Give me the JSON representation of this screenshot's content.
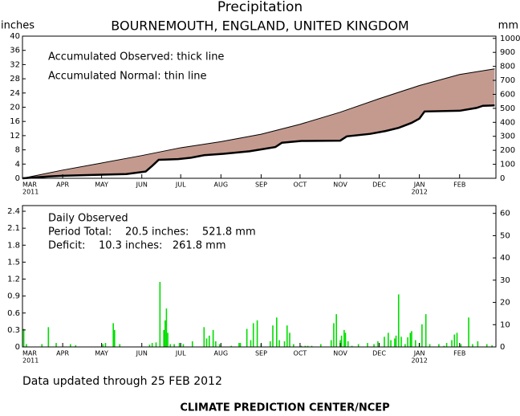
{
  "chart_data": [
    {
      "type": "line",
      "title": "Precipitation",
      "subtitle": "BOURNEMOUTH, ENGLAND, UNITED KINGDOM",
      "left_unit": "inches",
      "right_unit": "mm",
      "annotations": [
        "Accumulated Observed: thick line",
        "Accumulated Normal: thin line"
      ],
      "fill_color": "#c49a8f",
      "xlim": [
        0,
        365
      ],
      "xticks": [
        {
          "value": 0,
          "label": "MAR"
        },
        {
          "value": 31,
          "label": "APR"
        },
        {
          "value": 61,
          "label": "MAY"
        },
        {
          "value": 92,
          "label": "JUN"
        },
        {
          "value": 122,
          "label": "JUL"
        },
        {
          "value": 153,
          "label": "AUG"
        },
        {
          "value": 184,
          "label": "SEP"
        },
        {
          "value": 214,
          "label": "OCT"
        },
        {
          "value": 245,
          "label": "NOV"
        },
        {
          "value": 275,
          "label": "DEC"
        },
        {
          "value": 306,
          "label": "JAN"
        },
        {
          "value": 337,
          "label": "FEB"
        }
      ],
      "year_labels": [
        {
          "value": 0,
          "label": "2011"
        },
        {
          "value": 306,
          "label": "2012"
        }
      ],
      "ylim": [
        0,
        40
      ],
      "yticks": [
        0,
        4,
        8,
        12,
        16,
        20,
        24,
        28,
        32,
        36,
        40
      ],
      "y2lim": [
        0,
        1016
      ],
      "y2ticks": [
        0,
        100,
        200,
        300,
        400,
        500,
        600,
        700,
        800,
        900,
        1000
      ],
      "series": [
        {
          "color": "#000000",
          "linewidth": 1,
          "x": [
            0,
            31,
            61,
            92,
            122,
            153,
            184,
            214,
            245,
            275,
            306,
            337,
            364
          ],
          "values": [
            0,
            2.3,
            4.3,
            6.4,
            8.6,
            10.3,
            12.4,
            15.2,
            18.6,
            22.4,
            26.1,
            29.2,
            30.8
          ]
        },
        {
          "color": "#000000",
          "linewidth": 2.5,
          "x": [
            0,
            20,
            31,
            50,
            80,
            95,
            100,
            105,
            120,
            130,
            140,
            155,
            175,
            185,
            195,
            200,
            215,
            245,
            250,
            268,
            280,
            290,
            300,
            306,
            310,
            337,
            350,
            355,
            364
          ],
          "values": [
            0,
            0.5,
            0.7,
            0.9,
            1.2,
            1.9,
            3.5,
            5.2,
            5.4,
            5.8,
            6.5,
            6.9,
            7.6,
            8.2,
            8.8,
            10.0,
            10.5,
            10.6,
            11.8,
            12.5,
            13.3,
            14.2,
            15.6,
            16.8,
            18.8,
            19.0,
            19.8,
            20.4,
            20.5
          ]
        }
      ]
    },
    {
      "type": "bar",
      "annotations": [
        "Daily Observed",
        "Period Total:    20.5 inches:    521.8 mm",
        "Deficit:    10.3 inches:   261.8 mm"
      ],
      "color": "#00dd00",
      "xlim": [
        0,
        365
      ],
      "xticks": [
        {
          "value": 0,
          "label": "MAR"
        },
        {
          "value": 31,
          "label": "APR"
        },
        {
          "value": 61,
          "label": "MAY"
        },
        {
          "value": 92,
          "label": "JUN"
        },
        {
          "value": 122,
          "label": "JUL"
        },
        {
          "value": 153,
          "label": "AUG"
        },
        {
          "value": 184,
          "label": "SEP"
        },
        {
          "value": 214,
          "label": "OCT"
        },
        {
          "value": 245,
          "label": "NOV"
        },
        {
          "value": 275,
          "label": "DEC"
        },
        {
          "value": 306,
          "label": "JAN"
        },
        {
          "value": 337,
          "label": "FEB"
        }
      ],
      "year_labels": [
        {
          "value": 0,
          "label": "2011"
        },
        {
          "value": 306,
          "label": "2012"
        }
      ],
      "ylim": [
        0,
        2.5
      ],
      "yticks": [
        0,
        0.3,
        0.6,
        0.9,
        1.2,
        1.5,
        1.8,
        2.1,
        2.4
      ],
      "y2lim": [
        0,
        63.5
      ],
      "y2ticks": [
        0,
        10,
        20,
        30,
        40,
        50,
        60
      ],
      "x": [
        1,
        3,
        15,
        20,
        26,
        37,
        41,
        62,
        64,
        70,
        71,
        75,
        98,
        100,
        103,
        106,
        109,
        110,
        111,
        112,
        114,
        117,
        121,
        124,
        131,
        140,
        142,
        144,
        147,
        149,
        152,
        161,
        167,
        168,
        173,
        176,
        178,
        181,
        184,
        191,
        193,
        196,
        198,
        202,
        204,
        206,
        209,
        215,
        218,
        220,
        223,
        230,
        238,
        240,
        242,
        245,
        246,
        248,
        249,
        251,
        254,
        259,
        266,
        271,
        274,
        279,
        282,
        284,
        287,
        288,
        290,
        292,
        295,
        297,
        299,
        300,
        303,
        306,
        308,
        311,
        314,
        321,
        325,
        327,
        331,
        333,
        335,
        338,
        344,
        347,
        351,
        358,
        362
      ],
      "values": [
        0.32,
        0.05,
        0.05,
        0.35,
        0.07,
        0.05,
        0.03,
        0.05,
        0.07,
        0.42,
        0.3,
        0.05,
        0.04,
        0.07,
        0.08,
        1.15,
        0.3,
        0.47,
        0.68,
        0.25,
        0.05,
        0.05,
        0.07,
        0.05,
        0.1,
        0.35,
        0.15,
        0.2,
        0.3,
        0.1,
        0.05,
        0.02,
        0.07,
        0.07,
        0.32,
        0.12,
        0.42,
        0.47,
        0.05,
        0.1,
        0.38,
        0.52,
        0.12,
        0.1,
        0.38,
        0.25,
        0.05,
        0.02,
        0.02,
        0.02,
        0.02,
        0.05,
        0.12,
        0.42,
        0.58,
        0.12,
        0.2,
        0.3,
        0.25,
        0.1,
        0.02,
        0.05,
        0.07,
        0.05,
        0.1,
        0.18,
        0.25,
        0.12,
        0.15,
        0.2,
        0.93,
        0.18,
        0.05,
        0.17,
        0.25,
        0.28,
        0.12,
        0.07,
        0.4,
        0.58,
        0.05,
        0.05,
        0.02,
        0.07,
        0.12,
        0.22,
        0.25,
        0.05,
        0.52,
        0.05,
        0.1,
        0.05,
        0.03
      ]
    }
  ],
  "footer": {
    "updated": "Data updated through 25 FEB 2012",
    "credit": "CLIMATE PREDICTION CENTER/NCEP"
  }
}
